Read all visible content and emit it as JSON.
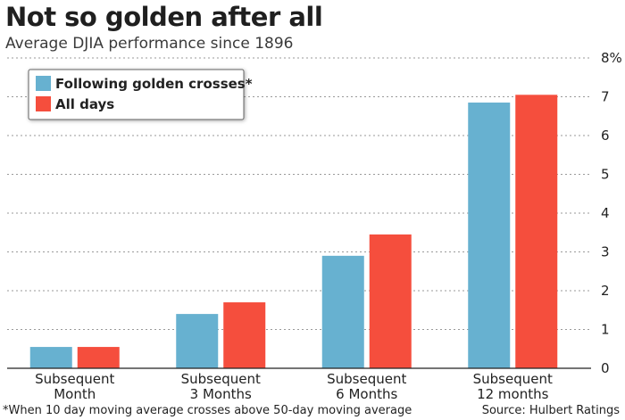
{
  "chart_data": {
    "type": "bar",
    "title": "Not so golden after all",
    "subtitle": "Average DJIA performance since 1896",
    "categories": [
      [
        "Subsequent",
        "Month"
      ],
      [
        "Subsequent",
        "3 Months"
      ],
      [
        "Subsequent",
        "6 Months"
      ],
      [
        "Subsequent",
        "12 months"
      ]
    ],
    "series": [
      {
        "name": "Following golden crosses*",
        "color": "#67b1d0",
        "values": [
          0.55,
          1.4,
          2.9,
          6.85
        ]
      },
      {
        "name": "All days",
        "color": "#f54e3d",
        "values": [
          0.55,
          1.7,
          3.45,
          7.05
        ]
      }
    ],
    "ylim": [
      0,
      8
    ],
    "yticks": [
      "0",
      "1",
      "2",
      "3",
      "4",
      "5",
      "6",
      "7",
      "8%"
    ],
    "grid": true,
    "legend_position": "top-left"
  },
  "footnote": "*When 10 day moving average crosses above 50-day moving average",
  "source": "Source: Hulbert Ratings"
}
